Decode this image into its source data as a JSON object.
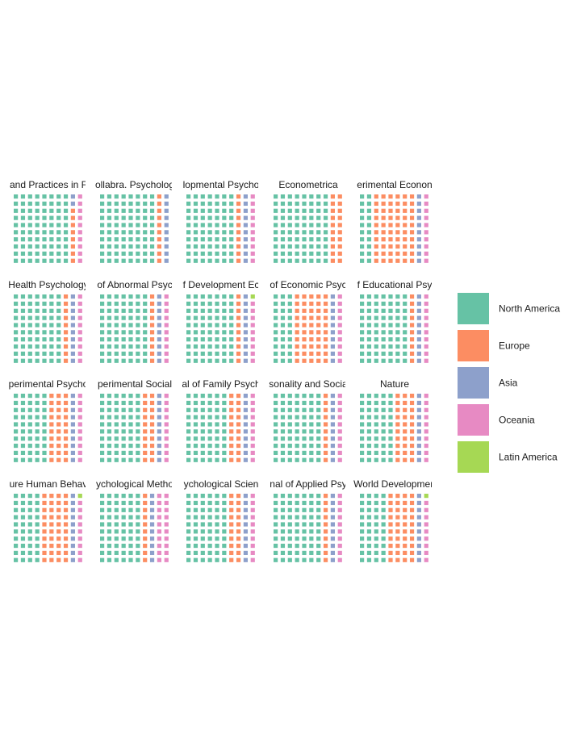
{
  "chart_data": {
    "type": "waffle",
    "grid": {
      "rows": 10,
      "cols": 10,
      "fill_order": "column-major, bottom-up"
    },
    "legend": {
      "position": "right",
      "entries": [
        {
          "name": "North America",
          "color": "#66c2a5"
        },
        {
          "name": "Europe",
          "color": "#fc8d62"
        },
        {
          "name": "Asia",
          "color": "#8da0cb"
        },
        {
          "name": "Oceania",
          "color": "#e78ac3"
        },
        {
          "name": "Latin America",
          "color": "#a6d854"
        }
      ]
    },
    "panels": [
      {
        "title": "and Practices in F",
        "counts": [
          80,
          8,
          2,
          10,
          0
        ]
      },
      {
        "title": "ollabra. Psycholog",
        "counts": [
          80,
          10,
          10,
          0,
          0
        ]
      },
      {
        "title": "lopmental Psycho",
        "counts": [
          70,
          10,
          10,
          10,
          0
        ]
      },
      {
        "title": "Econometrica",
        "counts": [
          80,
          20,
          0,
          0,
          0
        ]
      },
      {
        "title": "erimental Econon",
        "counts": [
          20,
          60,
          10,
          10,
          0
        ]
      },
      {
        "title": "Health Psychology",
        "counts": [
          70,
          10,
          10,
          10,
          0
        ]
      },
      {
        "title": "of Abnormal Psyc",
        "counts": [
          70,
          10,
          10,
          10,
          0
        ]
      },
      {
        "title": "f Development Ec",
        "counts": [
          70,
          10,
          10,
          9,
          1
        ]
      },
      {
        "title": "of Economic Psyc",
        "counts": [
          30,
          50,
          10,
          10,
          0
        ]
      },
      {
        "title": "f Educational Psy",
        "counts": [
          70,
          10,
          10,
          10,
          0
        ]
      },
      {
        "title": "perimental Psycho",
        "counts": [
          50,
          30,
          10,
          10,
          0
        ]
      },
      {
        "title": "perimental Social",
        "counts": [
          60,
          20,
          10,
          10,
          0
        ]
      },
      {
        "title": "al of Family Psych",
        "counts": [
          60,
          20,
          10,
          10,
          0
        ]
      },
      {
        "title": "sonality and Socia",
        "counts": [
          70,
          10,
          10,
          10,
          0
        ]
      },
      {
        "title": "Nature",
        "counts": [
          50,
          30,
          10,
          10,
          0
        ]
      },
      {
        "title": "ure Human Behav",
        "counts": [
          40,
          40,
          10,
          9,
          1
        ]
      },
      {
        "title": "ychological Metho",
        "counts": [
          60,
          10,
          10,
          20,
          0
        ]
      },
      {
        "title": "ychological Scien",
        "counts": [
          60,
          20,
          10,
          10,
          0
        ]
      },
      {
        "title": "nal of Applied Psy",
        "counts": [
          70,
          10,
          10,
          10,
          0
        ]
      },
      {
        "title": "World Developmen",
        "counts": [
          40,
          40,
          10,
          9,
          1
        ]
      }
    ]
  }
}
